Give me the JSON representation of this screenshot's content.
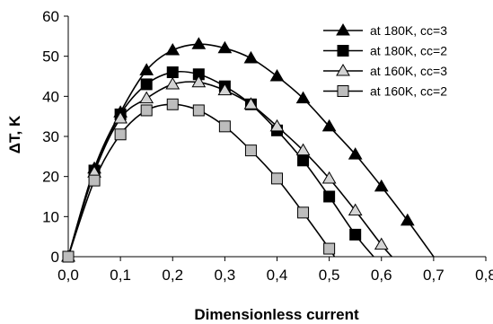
{
  "chart_data": {
    "type": "scatter",
    "title": "",
    "xlabel": "Dimensionless current",
    "ylabel": "ΔT, K",
    "xlim": [
      0,
      0.8
    ],
    "ylim": [
      0,
      60
    ],
    "x_ticks": [
      "0,0",
      "0,1",
      "0,2",
      "0,3",
      "0,4",
      "0,5",
      "0,6",
      "0,7",
      "0,8"
    ],
    "y_ticks": [
      "0",
      "10",
      "20",
      "30",
      "40",
      "50",
      "60"
    ],
    "grid": false,
    "legend_position": "top-right",
    "series": [
      {
        "name": "at 180K, cc=3",
        "marker": "triangle-filled",
        "color": "#000000",
        "marker_fill": "#000000",
        "x": [
          0,
          0.05,
          0.1,
          0.15,
          0.2,
          0.25,
          0.3,
          0.35,
          0.4,
          0.45,
          0.5,
          0.55,
          0.6,
          0.65
        ],
        "y": [
          0,
          22,
          36,
          46.5,
          51.5,
          53,
          52,
          49.5,
          45,
          39.5,
          32.5,
          25.5,
          17.5,
          9
        ],
        "curve_end": 0.7
      },
      {
        "name": "at 180K, cc=2",
        "marker": "square-filled",
        "color": "#000000",
        "marker_fill": "#000000",
        "x": [
          0,
          0.05,
          0.1,
          0.15,
          0.2,
          0.25,
          0.3,
          0.35,
          0.4,
          0.45,
          0.5,
          0.55
        ],
        "y": [
          0,
          21.5,
          35.5,
          43,
          46,
          45.5,
          42.5,
          38,
          31.5,
          24,
          15,
          5.5
        ],
        "curve_end": 0.585
      },
      {
        "name": "at 160K, cc=3",
        "marker": "triangle-open",
        "color": "#000000",
        "marker_fill": "#d4d4d4",
        "x": [
          0,
          0.05,
          0.1,
          0.15,
          0.2,
          0.25,
          0.3,
          0.35,
          0.4,
          0.45,
          0.5,
          0.55,
          0.6
        ],
        "y": [
          0,
          21,
          34.5,
          39.5,
          43,
          43.5,
          41.5,
          38,
          32.5,
          26.5,
          19.5,
          11.5,
          3
        ],
        "curve_end": 0.62
      },
      {
        "name": "at 160K, cc=2",
        "marker": "square-open",
        "color": "#000000",
        "marker_fill": "#bdbdbd",
        "x": [
          0,
          0.05,
          0.1,
          0.15,
          0.2,
          0.25,
          0.3,
          0.35,
          0.4,
          0.45,
          0.5
        ],
        "y": [
          0,
          19,
          30.5,
          36.5,
          38,
          36.5,
          32.5,
          26.5,
          19.5,
          11,
          2
        ],
        "curve_end": 0.51
      }
    ]
  }
}
